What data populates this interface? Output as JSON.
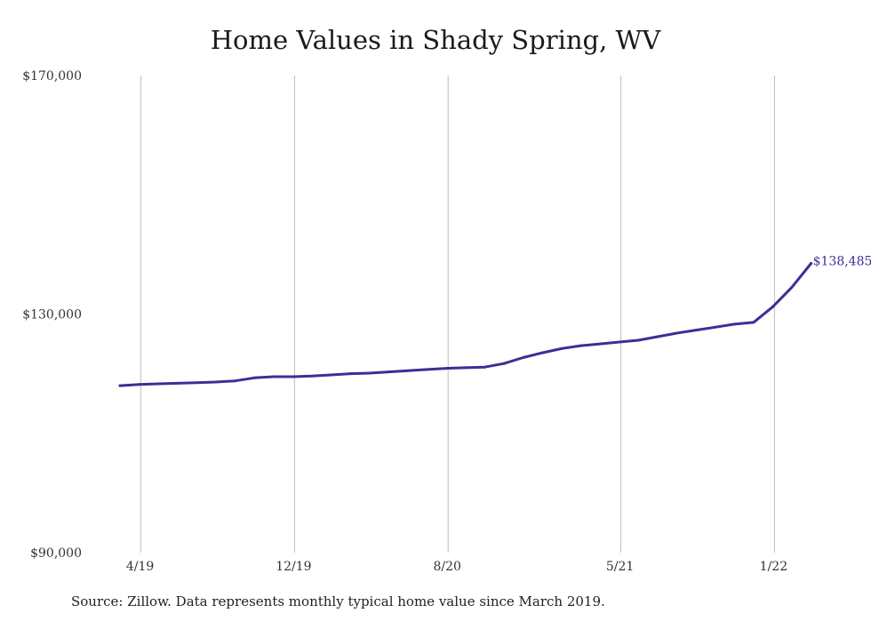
{
  "chart_data": {
    "type": "line",
    "title": "Home Values in Shady Spring, WV",
    "xlabel": "",
    "ylabel": "",
    "ylim": [
      90000,
      170000
    ],
    "y_ticks": [
      {
        "value": 90000,
        "label": "$90,000"
      },
      {
        "value": 130000,
        "label": "$130,000"
      },
      {
        "value": 170000,
        "label": "$170,000"
      }
    ],
    "x_ticks": [
      {
        "month": 1,
        "label": "4/19"
      },
      {
        "month": 9,
        "label": "12/19"
      },
      {
        "month": 17,
        "label": "8/20"
      },
      {
        "month": 26,
        "label": "5/21"
      },
      {
        "month": 34,
        "label": "1/22"
      }
    ],
    "grid": "vertical",
    "line_color": "#3b2f96",
    "series": [
      {
        "points": [
          [
            "2019-03",
            118000
          ],
          [
            "2019-04",
            118200
          ],
          [
            "2019-05",
            118300
          ],
          [
            "2019-06",
            118400
          ],
          [
            "2019-07",
            118500
          ],
          [
            "2019-08",
            118600
          ],
          [
            "2019-09",
            118800
          ],
          [
            "2019-10",
            119300
          ],
          [
            "2019-11",
            119500
          ],
          [
            "2019-12",
            119500
          ],
          [
            "2020-01",
            119600
          ],
          [
            "2020-02",
            119800
          ],
          [
            "2020-03",
            120000
          ],
          [
            "2020-04",
            120100
          ],
          [
            "2020-05",
            120300
          ],
          [
            "2020-06",
            120500
          ],
          [
            "2020-07",
            120700
          ],
          [
            "2020-08",
            120900
          ],
          [
            "2020-09",
            121000
          ],
          [
            "2020-10",
            121100
          ],
          [
            "2020-11",
            121700
          ],
          [
            "2020-12",
            122700
          ],
          [
            "2021-01",
            123500
          ],
          [
            "2021-02",
            124200
          ],
          [
            "2021-03",
            124700
          ],
          [
            "2021-04",
            125000
          ],
          [
            "2021-05",
            125300
          ],
          [
            "2021-06",
            125600
          ],
          [
            "2021-07",
            126200
          ],
          [
            "2021-08",
            126800
          ],
          [
            "2021-09",
            127300
          ],
          [
            "2021-10",
            127800
          ],
          [
            "2021-11",
            128300
          ],
          [
            "2021-12",
            128600
          ],
          [
            "2022-01",
            131200
          ],
          [
            "2022-02",
            134500
          ],
          [
            "2022-03",
            138485
          ]
        ]
      }
    ],
    "end_label": "$138,485"
  },
  "source": "Source: Zillow. Data represents monthly typical home value since March 2019."
}
